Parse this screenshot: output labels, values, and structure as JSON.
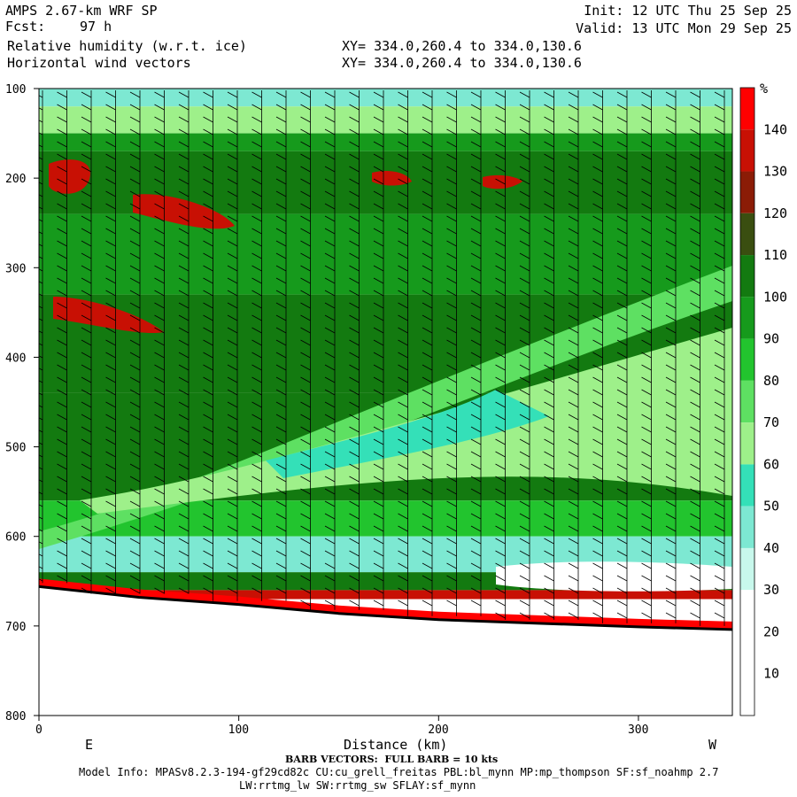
{
  "header": {
    "model": "AMPS 2.67-km WRF SP",
    "fcst_label": "Fcst:",
    "fcst_value": "97 h",
    "field1": "Relative humidity (w.r.t. ice)",
    "field2": "Horizontal wind vectors",
    "xy1": "XY= 334.0,260.4 to 334.0,130.6",
    "xy2": "XY= 334.0,260.4 to 334.0,130.6",
    "init": "Init: 12 UTC Thu 25 Sep 25",
    "valid": "Valid: 13 UTC Mon 29 Sep 25"
  },
  "footer": {
    "barb_note": "BARB VECTORS:  FULL BARB = 10 kts",
    "model_info": "Model Info: MPASv8.2.3-194-gf29cd82c CU:cu_grell_freitas PBL:bl_mynn MP:mp_thompson SF:sf_noahmp 2.7",
    "model_info2": "LW:rrtmg_lw SW:rrtmg_sw SFLAY:sf_mynn"
  },
  "chart_data": {
    "type": "heatmap",
    "xlabel": "Distance (km)",
    "ylabel": "",
    "x_ticks": [
      0,
      100,
      200,
      300
    ],
    "y_ticks": [
      100,
      200,
      300,
      400,
      500,
      600,
      700,
      800
    ],
    "xlim": [
      0,
      347
    ],
    "ylim": [
      800,
      100
    ],
    "end_labels": {
      "left": "E",
      "right": "W"
    },
    "colorbar": {
      "unit": "%",
      "levels": [
        10,
        20,
        30,
        40,
        50,
        60,
        70,
        80,
        90,
        100,
        110,
        120,
        130,
        140
      ],
      "colors": [
        "#ffffff",
        "#ffffff",
        "#ffffff",
        "#c8f8ec",
        "#7de8d2",
        "#34e0b8",
        "#9ef08a",
        "#5ee062",
        "#22c42e",
        "#169a1c",
        "#137a10",
        "#3a4e10",
        "#8b1c06",
        "#c81004",
        "#ff0000"
      ]
    },
    "rh_bands": [
      {
        "p_top": 100,
        "p_bot": 120,
        "rh": 40
      },
      {
        "p_top": 120,
        "p_bot": 150,
        "rh": 60
      },
      {
        "p_top": 150,
        "p_bot": 170,
        "rh": 90
      },
      {
        "p_top": 170,
        "p_bot": 240,
        "rh": 105
      },
      {
        "p_top": 240,
        "p_bot": 330,
        "rh": 95
      },
      {
        "p_top": 330,
        "p_bot": 440,
        "rh": 100
      },
      {
        "p_top": 440,
        "p_bot": 560,
        "rh": 100
      },
      {
        "p_top": 560,
        "p_bot": 600,
        "rh": 80
      },
      {
        "p_top": 600,
        "p_bot": 640,
        "rh": 45
      },
      {
        "p_top": 640,
        "p_bot": 660,
        "rh": 100
      },
      {
        "p_top": 660,
        "p_bot": 670,
        "rh": 130
      }
    ],
    "terrain_surface": [
      {
        "x": 0,
        "p": 656
      },
      {
        "x": 50,
        "p": 668
      },
      {
        "x": 100,
        "p": 676
      },
      {
        "x": 150,
        "p": 686
      },
      {
        "x": 200,
        "p": 693
      },
      {
        "x": 250,
        "p": 697
      },
      {
        "x": 300,
        "p": 701
      },
      {
        "x": 347,
        "p": 704
      }
    ]
  }
}
